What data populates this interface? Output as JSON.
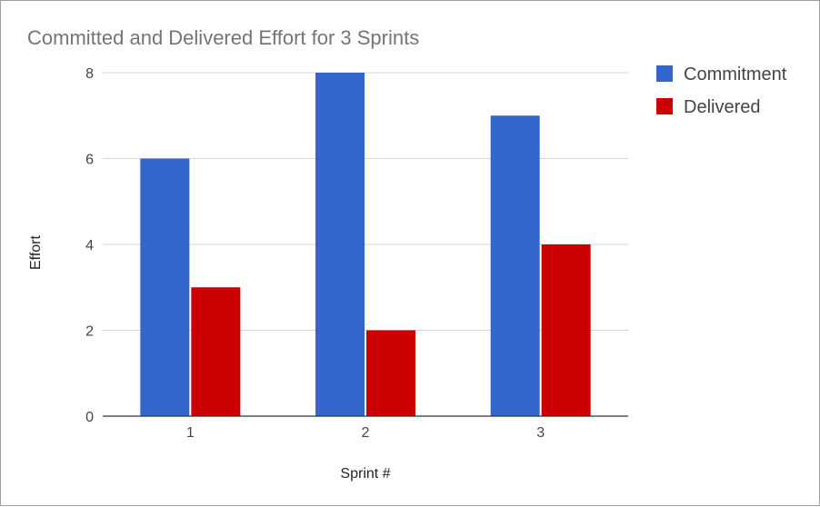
{
  "chart_data": {
    "type": "bar",
    "title": "Committed and Delivered Effort for 3 Sprints",
    "xlabel": "Sprint #",
    "ylabel": "Effort",
    "categories": [
      "1",
      "2",
      "3"
    ],
    "series": [
      {
        "name": "Commitment",
        "values": [
          6,
          8,
          7
        ],
        "color": "#3366cc"
      },
      {
        "name": "Delivered",
        "values": [
          3,
          2,
          4
        ],
        "color": "#cc0000"
      }
    ],
    "ylim": [
      0,
      8
    ],
    "yticks": [
      "0",
      "2",
      "4",
      "6",
      "8"
    ],
    "grid": true,
    "legend_position": "right"
  }
}
